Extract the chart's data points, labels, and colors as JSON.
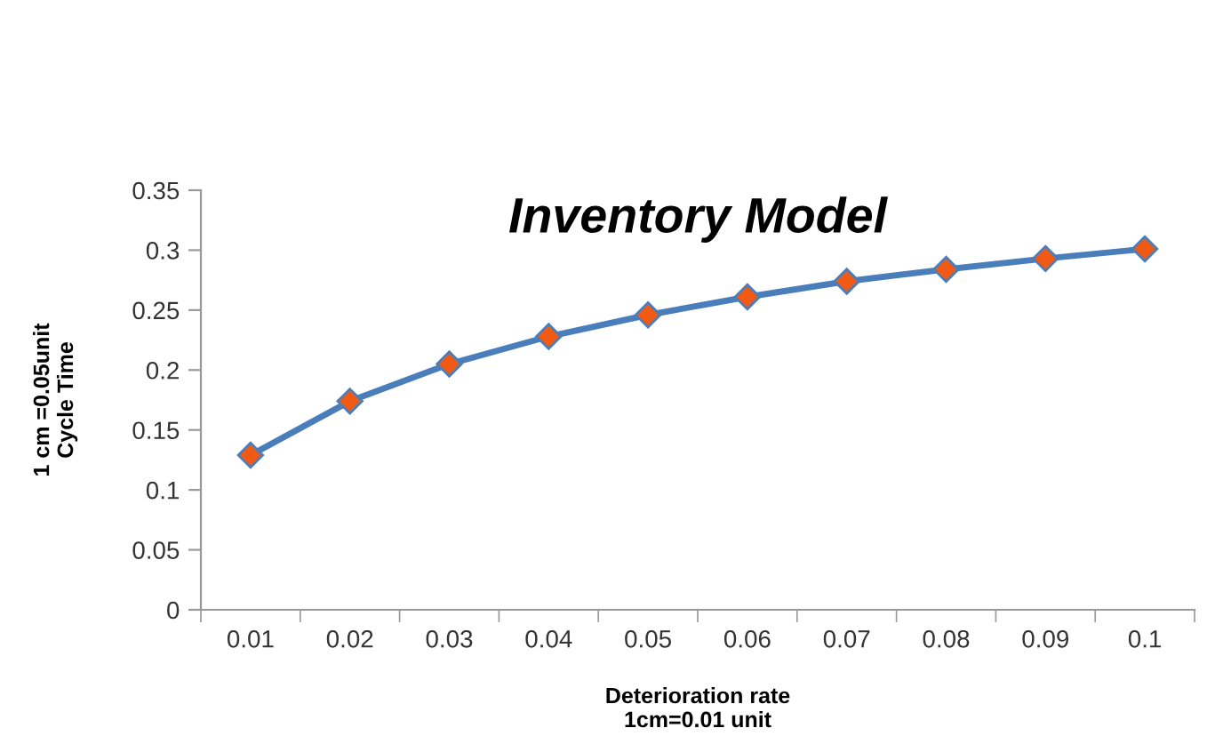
{
  "chart_data": {
    "type": "line",
    "title": "Inventory Model",
    "xlabel": "Deterioration rate\n1cm=0.01 unit",
    "ylabel": "1 cm =0.05unit\nCycle Time",
    "categories": [
      "0.01",
      "0.02",
      "0.03",
      "0.04",
      "0.05",
      "0.06",
      "0.07",
      "0.08",
      "0.09",
      "0.1"
    ],
    "series": [
      {
        "color": "#4a7ebb",
        "colors": [
          "#f05a14",
          "#f05a14",
          "#f05a14",
          "#f05a14",
          "#f05a14",
          "#f05a14",
          "#f05a14",
          "#f05a14",
          "#f05a14",
          "#f05a14"
        ],
        "values": [
          0.129,
          0.174,
          0.205,
          0.228,
          0.246,
          0.261,
          0.274,
          0.284,
          0.293,
          0.301
        ]
      }
    ],
    "ylim": [
      0,
      0.35
    ],
    "yticks": [
      0,
      0.05,
      0.1,
      0.15,
      0.2,
      0.25,
      0.3,
      0.35
    ],
    "grid": false,
    "legend": false,
    "marker": "diamond",
    "line_style": "solid"
  }
}
